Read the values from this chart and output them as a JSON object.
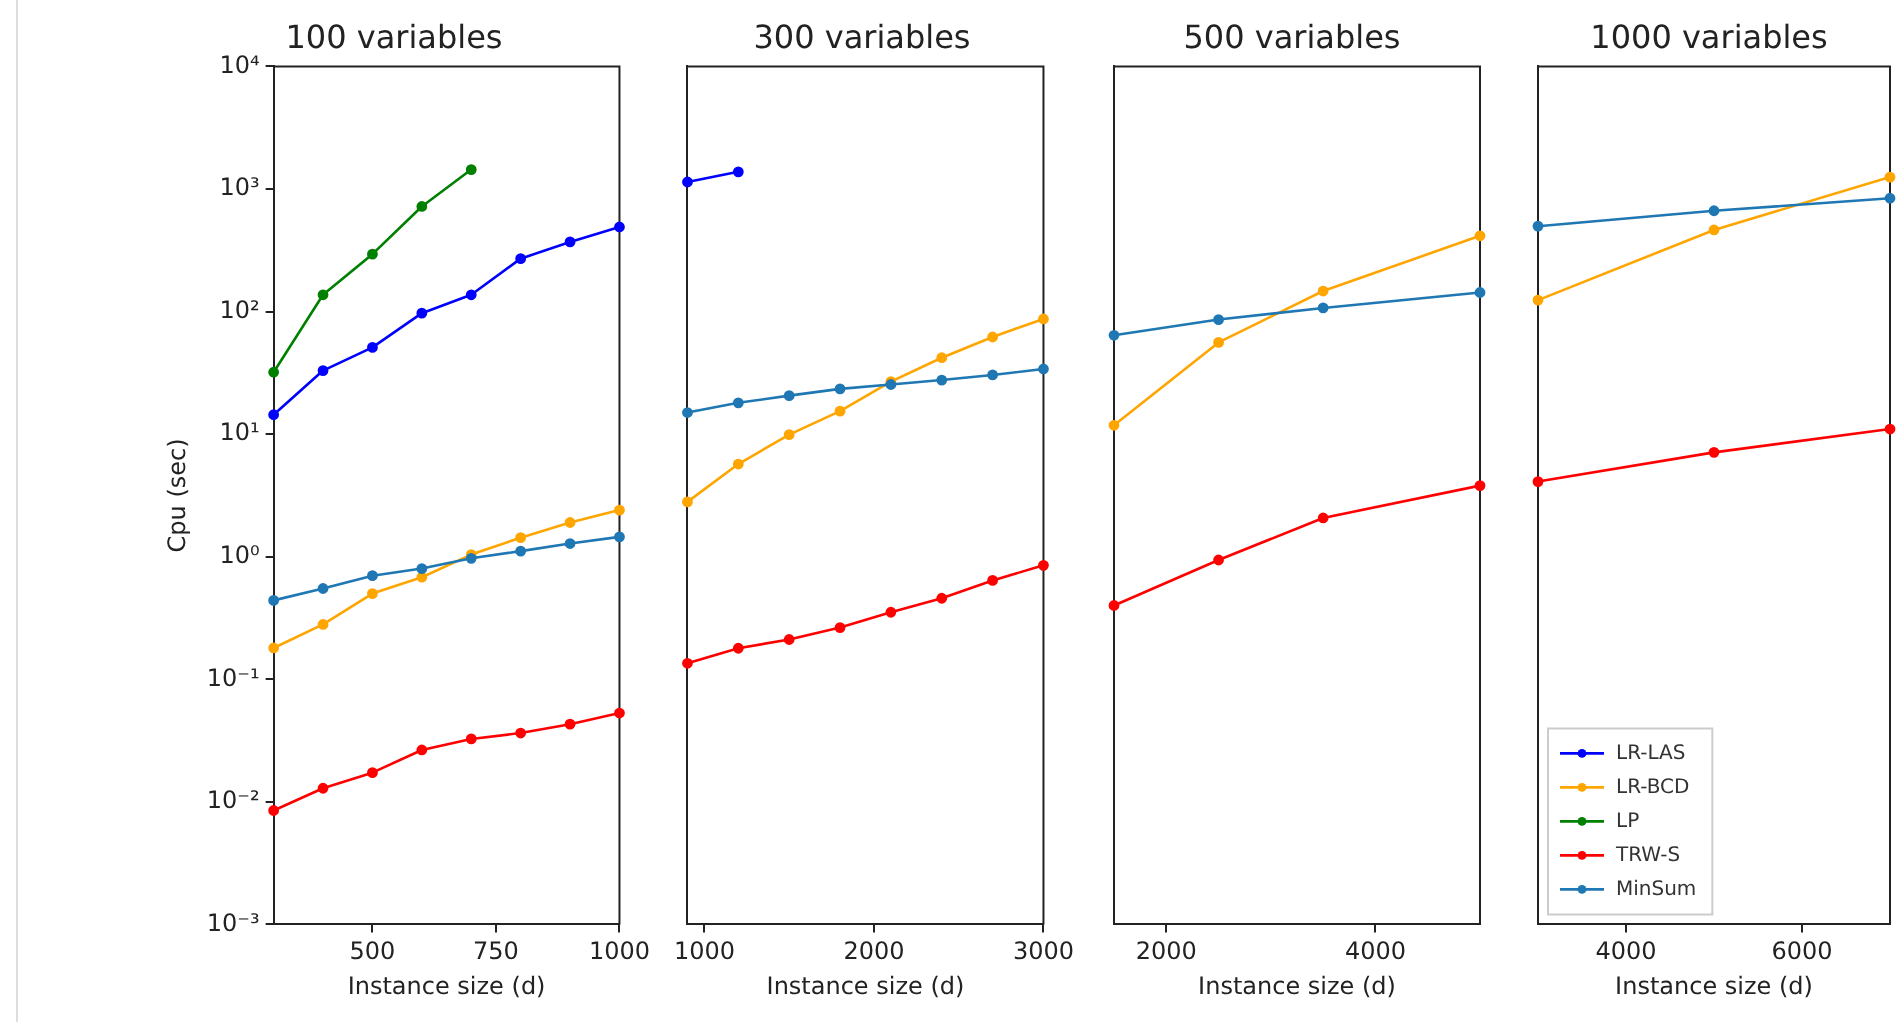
{
  "chart_data": [
    {
      "type": "line",
      "title": "100 variables",
      "xlabel": "Instance size (d)",
      "ylabel": "Cpu (sec)",
      "log": "y",
      "grid": false,
      "marker": "circle",
      "line_style": "solid",
      "xlim": [
        300,
        1000
      ],
      "xticks": [
        500,
        750,
        1000
      ],
      "ylim": [
        0.001,
        10000
      ],
      "yticks": [
        {
          "value": 0.001,
          "label": "10⁻³"
        },
        {
          "value": 0.01,
          "label": "10⁻²"
        },
        {
          "value": 0.1,
          "label": "10⁻¹"
        },
        {
          "value": 1,
          "label": "10⁰"
        },
        {
          "value": 10,
          "label": "10¹"
        },
        {
          "value": 100,
          "label": "10²"
        },
        {
          "value": 1000,
          "label": "10³"
        },
        {
          "value": 10000,
          "label": "10⁴"
        }
      ],
      "series": [
        {
          "color": "#0000ff",
          "x": [
            300,
            400,
            500,
            600,
            700,
            800,
            900,
            1000
          ],
          "values": [
            14.4,
            33,
            51,
            97,
            137,
            270,
            370,
            490
          ]
        },
        {
          "color": "#ffa500",
          "x": [
            300,
            400,
            500,
            600,
            700,
            800,
            900,
            1000
          ],
          "values": [
            0.18,
            0.28,
            0.5,
            0.68,
            1.04,
            1.43,
            1.9,
            2.4
          ]
        },
        {
          "color": "#008000",
          "x": [
            300,
            400,
            500,
            600,
            700
          ],
          "values": [
            32,
            137,
            294,
            720,
            1440
          ]
        },
        {
          "color": "#ff0000",
          "x": [
            300,
            400,
            500,
            600,
            700,
            800,
            900,
            1000
          ],
          "values": [
            0.0085,
            0.0129,
            0.0173,
            0.0265,
            0.0326,
            0.0364,
            0.043,
            0.053
          ]
        },
        {
          "color": "#1f77b4",
          "x": [
            300,
            400,
            500,
            600,
            700,
            800,
            900,
            1000
          ],
          "values": [
            0.44,
            0.55,
            0.7,
            0.8,
            0.97,
            1.11,
            1.28,
            1.45
          ]
        }
      ]
    },
    {
      "type": "line",
      "title": "300 variables",
      "xlabel": "Instance size (d)",
      "log": "y",
      "grid": false,
      "marker": "circle",
      "line_style": "solid",
      "tick_labels": "x",
      "xlim": [
        900,
        3000
      ],
      "xticks": [
        1000,
        2000,
        3000
      ],
      "ylim": [
        0.001,
        10000
      ],
      "yticks": [
        {
          "value": 0.001,
          "label": null
        },
        {
          "value": 0.01,
          "label": null
        },
        {
          "value": 0.1,
          "label": null
        },
        {
          "value": 1,
          "label": null
        },
        {
          "value": 10,
          "label": null
        },
        {
          "value": 100,
          "label": null
        },
        {
          "value": 1000,
          "label": null
        },
        {
          "value": 10000,
          "label": null
        }
      ],
      "series": [
        {
          "color": "#0000ff",
          "x": [
            900,
            1200
          ],
          "values": [
            1140,
            1380
          ]
        },
        {
          "color": "#ffa500",
          "x": [
            900,
            1200,
            1500,
            1800,
            2100,
            2400,
            2700,
            3000
          ],
          "values": [
            2.8,
            5.7,
            9.9,
            15.4,
            26.8,
            42,
            62,
            87
          ]
        },
        {
          "color": "#ff0000",
          "x": [
            900,
            1200,
            1500,
            1800,
            2100,
            2400,
            2700,
            3000
          ],
          "values": [
            0.135,
            0.179,
            0.211,
            0.264,
            0.352,
            0.458,
            0.64,
            0.85
          ]
        },
        {
          "color": "#1f77b4",
          "x": [
            900,
            1200,
            1500,
            1800,
            2100,
            2400,
            2700,
            3000
          ],
          "values": [
            15,
            18,
            20.6,
            23.4,
            25.4,
            27.6,
            30.4,
            34
          ]
        }
      ]
    },
    {
      "type": "line",
      "title": "500 variables",
      "xlabel": "Instance size (d)",
      "log": "y",
      "grid": false,
      "marker": "circle",
      "line_style": "solid",
      "tick_labels": "x",
      "xlim": [
        1500,
        5000
      ],
      "xticks": [
        2000,
        4000
      ],
      "ylim": [
        0.001,
        10000
      ],
      "yticks": [
        {
          "value": 0.001,
          "label": null
        },
        {
          "value": 0.01,
          "label": null
        },
        {
          "value": 0.1,
          "label": null
        },
        {
          "value": 1,
          "label": null
        },
        {
          "value": 10,
          "label": null
        },
        {
          "value": 100,
          "label": null
        },
        {
          "value": 1000,
          "label": null
        },
        {
          "value": 10000,
          "label": null
        }
      ],
      "series": [
        {
          "color": "#ffa500",
          "x": [
            1500,
            2500,
            3500,
            5000
          ],
          "values": [
            11.8,
            56,
            147,
            415
          ]
        },
        {
          "color": "#ff0000",
          "x": [
            1500,
            2500,
            3500,
            5000
          ],
          "values": [
            0.4,
            0.94,
            2.07,
            3.8
          ]
        },
        {
          "color": "#1f77b4",
          "x": [
            1500,
            2500,
            3500,
            5000
          ],
          "values": [
            64,
            86,
            107,
            143
          ]
        }
      ]
    },
    {
      "type": "line",
      "title": "1000 variables",
      "xlabel": "Instance size (d)",
      "log": "y",
      "grid": false,
      "marker": "circle",
      "line_style": "solid",
      "tick_labels": "x",
      "legend": "bottom left",
      "xlim": [
        3000,
        7000
      ],
      "xticks": [
        4000,
        6000
      ],
      "ylim": [
        0.001,
        10000
      ],
      "yticks": [
        {
          "value": 0.001,
          "label": null
        },
        {
          "value": 0.01,
          "label": null
        },
        {
          "value": 0.1,
          "label": null
        },
        {
          "value": 1,
          "label": null
        },
        {
          "value": 10,
          "label": null
        },
        {
          "value": 100,
          "label": null
        },
        {
          "value": 1000,
          "label": null
        },
        {
          "value": 10000,
          "label": null
        }
      ],
      "series": [
        {
          "name": "LR-LAS",
          "color": "#0000ff"
        },
        {
          "name": "LR-BCD",
          "color": "#ffa500",
          "x": [
            3000,
            5000,
            7000
          ],
          "values": [
            124,
            463,
            1250
          ]
        },
        {
          "name": "LP",
          "color": "#008000"
        },
        {
          "name": "TRW-S",
          "color": "#ff0000",
          "x": [
            3000,
            5000,
            7000
          ],
          "values": [
            4.1,
            7.1,
            11
          ]
        },
        {
          "name": "MinSum",
          "color": "#1f77b4",
          "x": [
            3000,
            5000,
            7000
          ],
          "values": [
            497,
            664,
            840
          ]
        }
      ]
    }
  ]
}
